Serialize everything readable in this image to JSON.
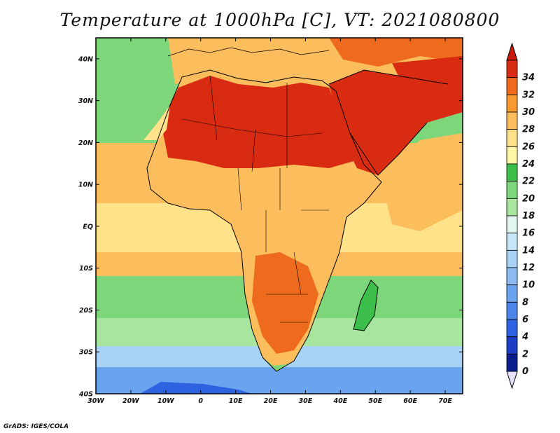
{
  "title": "Temperature at 1000hPa [C], VT: 2021080800",
  "credit": "GrADS: IGES/COLA",
  "map": {
    "lon_range": [
      -30,
      75
    ],
    "lat_range": [
      -40,
      45
    ],
    "lon_ticks": [
      {
        "value": -30,
        "label": "30W"
      },
      {
        "value": -20,
        "label": "20W"
      },
      {
        "value": -10,
        "label": "10W"
      },
      {
        "value": 0,
        "label": "0"
      },
      {
        "value": 10,
        "label": "10E"
      },
      {
        "value": 20,
        "label": "20E"
      },
      {
        "value": 30,
        "label": "30E"
      },
      {
        "value": 40,
        "label": "40E"
      },
      {
        "value": 50,
        "label": "50E"
      },
      {
        "value": 60,
        "label": "60E"
      },
      {
        "value": 70,
        "label": "70E"
      }
    ],
    "lat_ticks": [
      {
        "value": 40,
        "label": "40N"
      },
      {
        "value": 30,
        "label": "30N"
      },
      {
        "value": 20,
        "label": "20N"
      },
      {
        "value": 10,
        "label": "10N"
      },
      {
        "value": 0,
        "label": "EQ"
      },
      {
        "value": -10,
        "label": "10S"
      },
      {
        "value": -20,
        "label": "20S"
      },
      {
        "value": -30,
        "label": "30S"
      },
      {
        "value": -40,
        "label": "40S"
      }
    ]
  },
  "colorbar": {
    "levels": [
      0,
      2,
      4,
      6,
      8,
      10,
      12,
      14,
      16,
      18,
      20,
      22,
      24,
      26,
      28,
      30,
      32,
      34
    ],
    "colors": [
      "#0a1f8c",
      "#1a3fc4",
      "#2d62e0",
      "#4a86e8",
      "#6aa3ee",
      "#8bbdf3",
      "#a9d2f7",
      "#c7e6fa",
      "#e2f6f2",
      "#a8e6a0",
      "#7dd67a",
      "#3cbf4a",
      "#fff6a8",
      "#ffe28a",
      "#fcbd5c",
      "#f79a30",
      "#ee6a1c",
      "#d92a12"
    ],
    "below_color": "#e6e0fa",
    "above_color": "#c81a0a"
  },
  "icons": {
    "colorbar_low_arrow": "triangle-down",
    "colorbar_high_arrow": "triangle-up"
  },
  "colors": {
    "ocean_south": "#4a86e8",
    "ocean_mid": "#7dd67a",
    "ocean_tropic": "#fcbd5c",
    "land_hot": "#d92a12",
    "coastline": "#000000"
  }
}
